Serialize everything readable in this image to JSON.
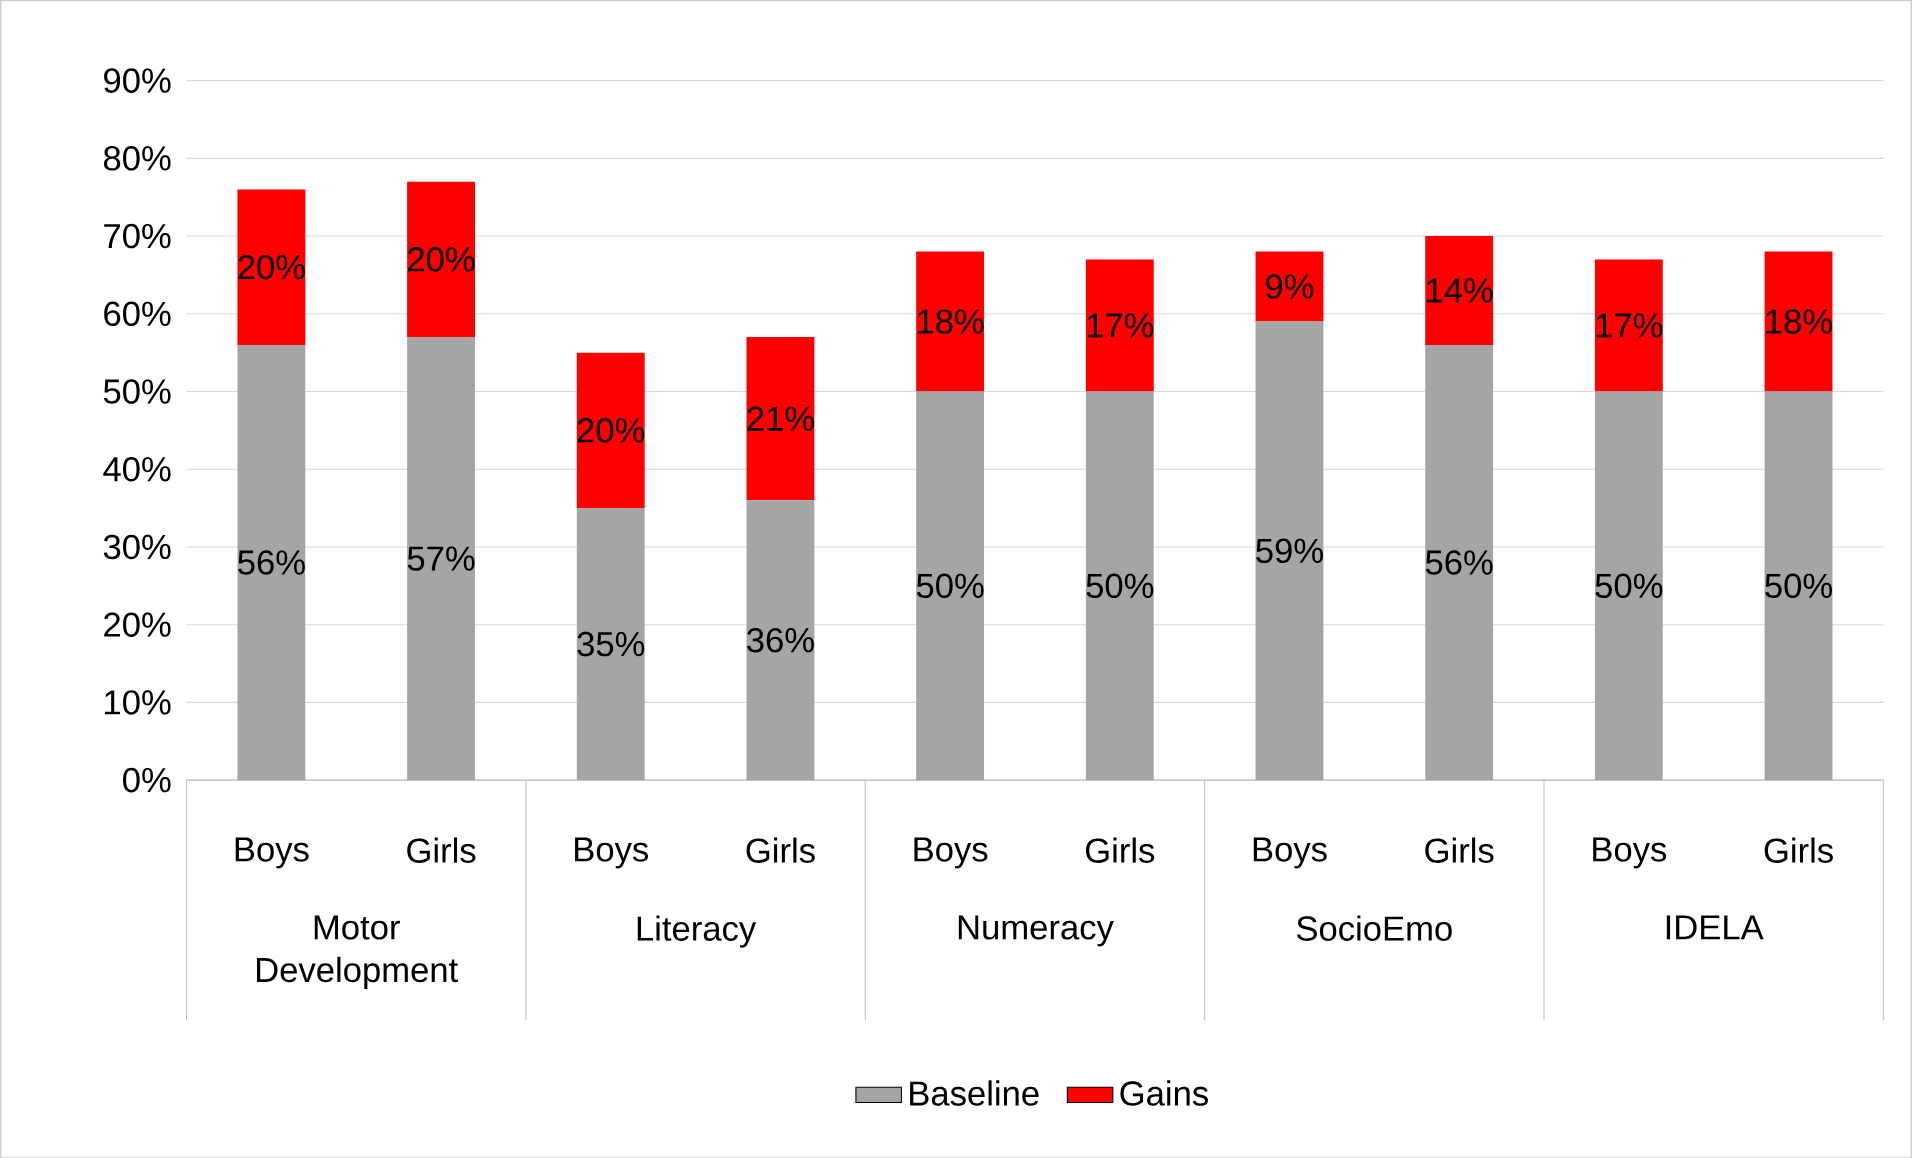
{
  "chart_data": {
    "type": "bar",
    "stacked": true,
    "categories": [
      "Boys",
      "Girls",
      "Boys",
      "Girls",
      "Boys",
      "Girls",
      "Boys",
      "Girls",
      "Boys",
      "Girls"
    ],
    "annotations": [
      "Motor Development",
      "Literacy",
      "Numeracy",
      "SocioEmo",
      "IDELA"
    ],
    "series": [
      {
        "name": "Baseline",
        "color": "#a5a5a5",
        "values": [
          56,
          57,
          35,
          36,
          50,
          50,
          59,
          56,
          50,
          50
        ],
        "value_labels": [
          "56%",
          "57%",
          "35%",
          "36%",
          "50%",
          "50%",
          "59%",
          "56%",
          "50%",
          "50%"
        ]
      },
      {
        "name": "Gains",
        "color": "#ff0000",
        "values": [
          20,
          20,
          20,
          21,
          18,
          17,
          9,
          14,
          17,
          18
        ],
        "value_labels": [
          "20%",
          "20%",
          "20%",
          "21%",
          "18%",
          "17%",
          "9%",
          "14%",
          "17%",
          "18%"
        ]
      }
    ],
    "ylim": [
      0,
      90
    ],
    "yticks": [
      {
        "value": 0,
        "label": "0%"
      },
      {
        "value": 10,
        "label": "10%"
      },
      {
        "value": 20,
        "label": "20%"
      },
      {
        "value": 30,
        "label": "30%"
      },
      {
        "value": 40,
        "label": "40%"
      },
      {
        "value": 50,
        "label": "50%"
      },
      {
        "value": 60,
        "label": "60%"
      },
      {
        "value": 70,
        "label": "70%"
      },
      {
        "value": 80,
        "label": "80%"
      },
      {
        "value": 90,
        "label": "90%"
      }
    ],
    "grid": "y",
    "legend": "bottom"
  }
}
